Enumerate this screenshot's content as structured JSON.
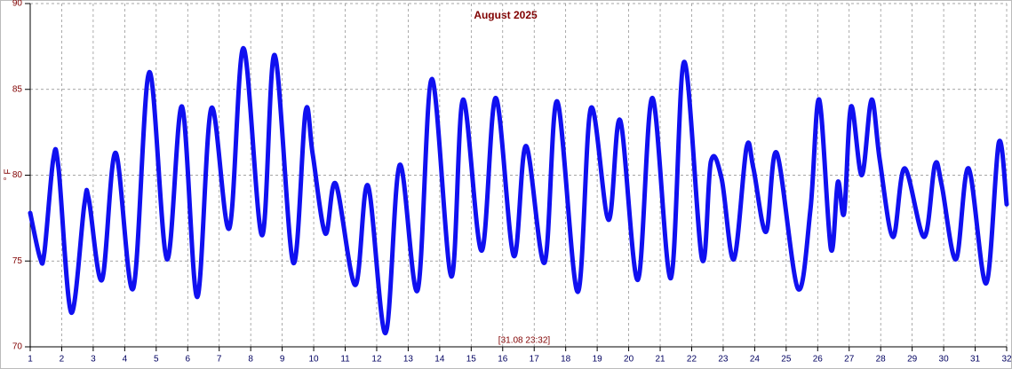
{
  "chart_data": {
    "type": "line",
    "title": "August 2025",
    "ylabel": "° F",
    "annotation": "[31.08 23:32]",
    "xlim": [
      1,
      32
    ],
    "xticks": [
      1,
      2,
      3,
      4,
      5,
      6,
      7,
      8,
      9,
      10,
      11,
      12,
      13,
      14,
      15,
      16,
      17,
      18,
      19,
      20,
      21,
      22,
      23,
      24,
      25,
      26,
      27,
      28,
      29,
      30,
      31,
      32
    ],
    "ylim": [
      70,
      90
    ],
    "yticks": [
      70,
      75,
      80,
      85,
      90
    ],
    "grid": true,
    "series": [
      {
        "color": "#1010f0",
        "x": [
          1.0,
          1.31,
          1.45,
          1.73,
          1.9,
          2.3,
          2.72,
          2.86,
          3.28,
          3.71,
          4.27,
          4.78,
          5.34,
          5.82,
          6.3,
          6.75,
          7.32,
          7.77,
          8.36,
          8.76,
          9.35,
          9.74,
          9.97,
          10.37,
          10.7,
          11.32,
          11.72,
          12.28,
          12.73,
          13.3,
          13.75,
          14.37,
          14.74,
          15.33,
          15.78,
          16.35,
          16.74,
          17.33,
          17.73,
          18.38,
          18.8,
          19.36,
          19.73,
          20.29,
          20.75,
          21.34,
          21.76,
          22.33,
          22.61,
          22.95,
          23.34,
          23.74,
          23.96,
          24.36,
          24.7,
          25.37,
          25.77,
          26.05,
          26.42,
          26.64,
          26.84,
          27.06,
          27.4,
          27.71,
          27.97,
          28.39,
          28.76,
          29.38,
          29.72,
          29.94,
          30.39,
          30.79,
          31.35,
          31.75,
          32.0
        ],
        "values": [
          77.8,
          75.2,
          75.5,
          80.9,
          80.4,
          72.0,
          78.3,
          78.6,
          73.9,
          81.3,
          73.4,
          86.0,
          75.1,
          84.0,
          72.9,
          83.9,
          76.9,
          87.4,
          76.5,
          87.0,
          74.9,
          83.7,
          81.2,
          76.6,
          79.5,
          73.6,
          79.4,
          70.8,
          80.6,
          73.3,
          85.6,
          74.1,
          84.4,
          75.6,
          84.5,
          75.3,
          81.7,
          74.9,
          84.3,
          73.2,
          83.9,
          77.4,
          83.2,
          73.9,
          84.5,
          74.0,
          86.6,
          75.1,
          80.8,
          79.8,
          75.1,
          81.6,
          80.4,
          76.7,
          81.3,
          73.4,
          78.0,
          84.4,
          75.7,
          79.6,
          77.8,
          84.0,
          80.0,
          84.4,
          80.9,
          76.4,
          80.4,
          76.4,
          80.6,
          79.4,
          75.1,
          80.4,
          73.7,
          81.9,
          78.3
        ]
      }
    ]
  }
}
